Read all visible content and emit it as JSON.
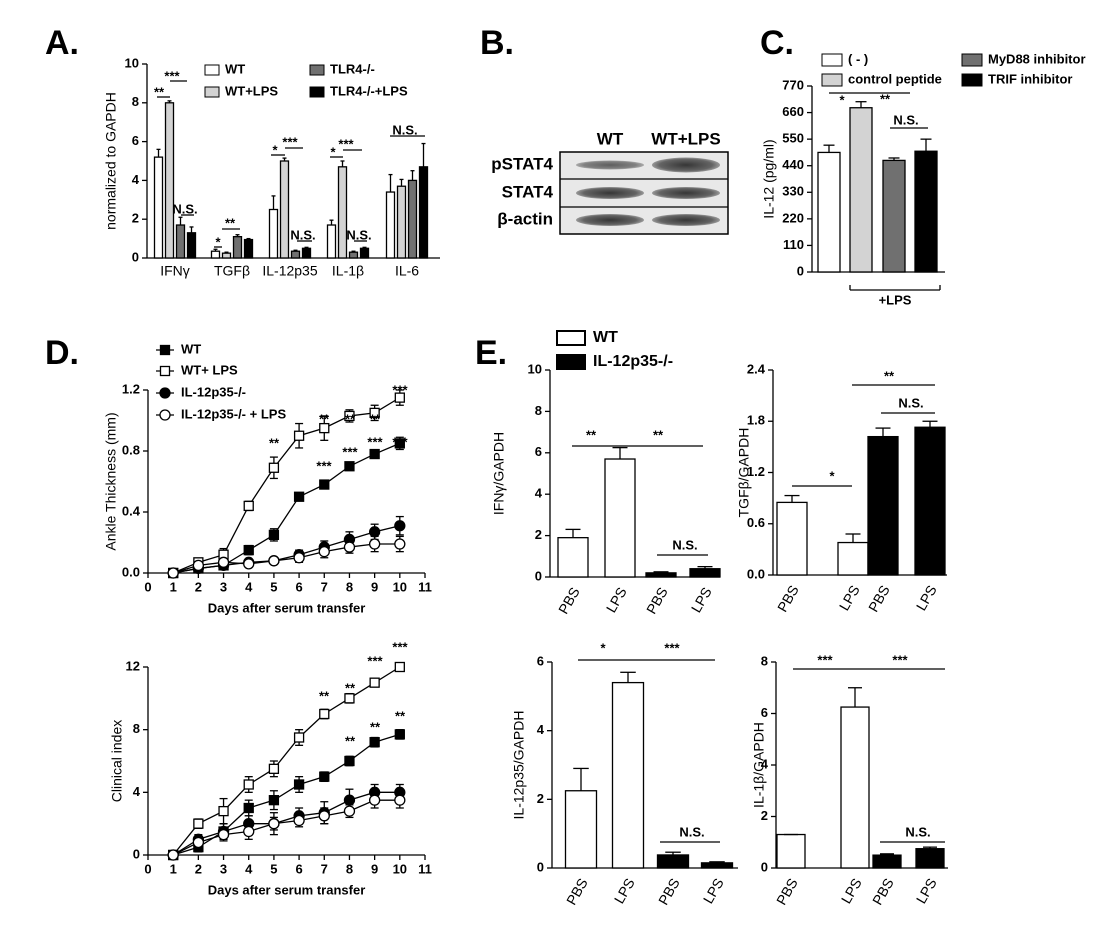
{
  "chart_data": [
    {
      "type": "bar",
      "panel": "A.",
      "ylabel": "normalized to GAPDH",
      "categories": [
        "IFNγ",
        "TGFβ",
        "IL-12p35",
        "IL-1β",
        "IL-6"
      ],
      "series": [
        {
          "name": "WT",
          "color": "#ffffff",
          "values": [
            5.2,
            0.35,
            2.5,
            1.7,
            3.4
          ],
          "errors": [
            0.4,
            0.1,
            0.7,
            0.25,
            0.9
          ]
        },
        {
          "name": "WT+LPS",
          "color": "#d3d3d3",
          "values": [
            8.0,
            0.25,
            5.0,
            4.7,
            3.7
          ],
          "errors": [
            0.1,
            0.05,
            0.15,
            0.3,
            0.35
          ]
        },
        {
          "name": "TLR4-/-",
          "color": "#707070",
          "values": [
            1.7,
            1.1,
            0.35,
            0.3,
            4.0
          ],
          "errors": [
            0.4,
            0.1,
            0.05,
            0.05,
            0.5
          ]
        },
        {
          "name": "TLR4-/-+LPS",
          "color": "#000000",
          "values": [
            1.3,
            0.95,
            0.5,
            0.5,
            4.7
          ],
          "errors": [
            0.3,
            0.05,
            0.05,
            0.05,
            1.2
          ]
        }
      ],
      "ylim": [
        0,
        10
      ],
      "yticks": [
        0,
        2,
        4,
        6,
        8,
        10
      ],
      "annotations": [
        "**",
        "***",
        "N.S.",
        "*",
        "**",
        "*",
        "***",
        "N.S.",
        "*",
        "***",
        "N.S.",
        "N.S."
      ]
    },
    {
      "type": "blot",
      "panel": "B.",
      "columns": [
        "WT",
        "WT+LPS"
      ],
      "rows": [
        "pSTAT4",
        "STAT4",
        "β-actin"
      ]
    },
    {
      "type": "bar",
      "panel": "C.",
      "ylabel": "IL-12 (pg/ml)",
      "group_label": "+LPS",
      "categories": [
        "( - )",
        "control peptide",
        "MyD88 inhibitor",
        "TRIF inhibitor"
      ],
      "colors": [
        "#ffffff",
        "#d3d3d3",
        "#707070",
        "#000000"
      ],
      "values": [
        495,
        680,
        462,
        500
      ],
      "errors": [
        30,
        25,
        10,
        50
      ],
      "ylim": [
        0,
        770
      ],
      "yticks": [
        0,
        110,
        220,
        330,
        440,
        550,
        660,
        770
      ],
      "annotations": [
        "*",
        "**",
        "N.S."
      ]
    },
    {
      "type": "line",
      "panel": "D.",
      "ylabel": "Ankle Thickness (mm)",
      "xlabel": "Days after serum transfer",
      "x": [
        1,
        2,
        3,
        4,
        5,
        6,
        7,
        8,
        9,
        10
      ],
      "series": [
        {
          "name": "WT",
          "marker": "filled-square",
          "values": [
            0,
            0.03,
            0.05,
            0.15,
            0.25,
            0.5,
            0.58,
            0.7,
            0.78,
            0.85
          ],
          "errors": [
            0,
            0.01,
            0.02,
            0.03,
            0.04,
            0.02,
            0.02,
            0.02,
            0.02,
            0.04
          ]
        },
        {
          "name": "WT+ LPS",
          "marker": "open-square",
          "values": [
            0,
            0.07,
            0.12,
            0.44,
            0.69,
            0.9,
            0.95,
            1.03,
            1.05,
            1.15
          ],
          "errors": [
            0,
            0.02,
            0.04,
            0.03,
            0.07,
            0.08,
            0.08,
            0.04,
            0.05,
            0.05
          ]
        },
        {
          "name": "IL-12p35-/-",
          "marker": "filled-circle",
          "values": [
            0,
            0.03,
            0.05,
            0.07,
            0.08,
            0.12,
            0.17,
            0.22,
            0.27,
            0.31
          ],
          "errors": [
            0,
            0.01,
            0.01,
            0.02,
            0.02,
            0.03,
            0.04,
            0.05,
            0.05,
            0.06
          ]
        },
        {
          "name": "IL-12p35-/- + LPS",
          "marker": "open-circle",
          "values": [
            0,
            0.05,
            0.07,
            0.06,
            0.08,
            0.1,
            0.14,
            0.17,
            0.19,
            0.19
          ],
          "errors": [
            0,
            0.02,
            0.02,
            0.02,
            0.02,
            0.03,
            0.04,
            0.04,
            0.05,
            0.05
          ]
        }
      ],
      "xlim": [
        0,
        11
      ],
      "xticks": [
        0,
        1,
        2,
        3,
        4,
        5,
        6,
        7,
        8,
        9,
        10,
        11
      ],
      "ylim": [
        0,
        1.2
      ],
      "yticks": [
        {
          "value": 0,
          "label": "0.0"
        },
        0.4,
        0.8,
        1.2
      ],
      "annotations": [
        "**",
        "**",
        "**",
        "**",
        "***",
        "***",
        "***",
        "***",
        "***"
      ]
    },
    {
      "type": "line",
      "ylabel": "Clinical index",
      "xlabel": "Days after serum transfer",
      "x": [
        1,
        2,
        3,
        4,
        5,
        6,
        7,
        8,
        9,
        10
      ],
      "series": [
        {
          "marker": "filled-square",
          "values": [
            0,
            0.5,
            1.5,
            3,
            3.5,
            4.5,
            5,
            6,
            7.2,
            7.7
          ],
          "errors": [
            0,
            0.3,
            0.5,
            0.5,
            0.6,
            0.5,
            0.3,
            0.3,
            0.3,
            0.3
          ]
        },
        {
          "marker": "open-square",
          "values": [
            0,
            2,
            2.8,
            4.5,
            5.5,
            7.5,
            9,
            10,
            11,
            12
          ],
          "errors": [
            0,
            0.3,
            0.8,
            0.5,
            0.5,
            0.5,
            0.3,
            0.3,
            0.2,
            0.2
          ]
        },
        {
          "marker": "filled-circle",
          "values": [
            0,
            1,
            1.5,
            2,
            2,
            2.5,
            2.7,
            3.5,
            4,
            4
          ],
          "errors": [
            0,
            0.3,
            0.5,
            0.5,
            0.7,
            0.5,
            0.7,
            0.7,
            0.5,
            0.5
          ]
        },
        {
          "marker": "open-circle",
          "values": [
            0,
            0.8,
            1.3,
            1.5,
            2,
            2.2,
            2.5,
            2.8,
            3.5,
            3.5
          ],
          "errors": [
            0,
            0.3,
            0.4,
            0.5,
            0.4,
            0.4,
            0.5,
            0.4,
            0.5,
            0.5
          ]
        }
      ],
      "xlim": [
        0,
        11
      ],
      "xticks": [
        0,
        1,
        2,
        3,
        4,
        5,
        6,
        7,
        8,
        9,
        10,
        11
      ],
      "ylim": [
        0,
        12
      ],
      "yticks": [
        0,
        4,
        8,
        12
      ],
      "annotations": [
        "**",
        "**",
        "***",
        "***",
        "**",
        "**",
        "**"
      ]
    },
    {
      "type": "bar",
      "panel": "E.",
      "ylabel": "IFNγ/GAPDH",
      "legend": [
        {
          "name": "WT",
          "color": "#ffffff"
        },
        {
          "name": "IL-12p35-/-",
          "color": "#000000"
        }
      ],
      "categories": [
        "PBS",
        "LPS",
        "PBS",
        "LPS"
      ],
      "colors": [
        "#ffffff",
        "#ffffff",
        "#000000",
        "#000000"
      ],
      "values": [
        1.9,
        5.7,
        0.2,
        0.4
      ],
      "errors": [
        0.4,
        0.55,
        0.05,
        0.1
      ],
      "ylim": [
        0,
        10
      ],
      "yticks": [
        0,
        2,
        4,
        6,
        8,
        10
      ],
      "annotations": [
        "**",
        "**",
        "N.S."
      ]
    },
    {
      "type": "bar",
      "ylabel": "TGFβ/GAPDH",
      "categories": [
        "PBS",
        "LPS",
        "PBS",
        "LPS"
      ],
      "colors": [
        "#ffffff",
        "#ffffff",
        "#000000",
        "#000000"
      ],
      "values": [
        0.85,
        0.38,
        1.62,
        1.73
      ],
      "errors": [
        0.08,
        0.1,
        0.1,
        0.07
      ],
      "ylim": [
        0,
        2.4
      ],
      "yticks": [
        {
          "value": 0,
          "label": "0.0"
        },
        0.6,
        1.2,
        1.8,
        2.4
      ],
      "annotations": [
        "*",
        "**",
        "N.S."
      ]
    },
    {
      "type": "bar",
      "ylabel": "IL-12p35/GAPDH",
      "categories": [
        "PBS",
        "LPS",
        "PBS",
        "LPS"
      ],
      "colors": [
        "#ffffff",
        "#ffffff",
        "#000000",
        "#000000"
      ],
      "values": [
        2.25,
        5.4,
        0.38,
        0.15
      ],
      "errors": [
        0.65,
        0.3,
        0.08,
        0.03
      ],
      "ylim": [
        0,
        6
      ],
      "yticks": [
        0,
        2,
        4,
        6
      ],
      "annotations": [
        "*",
        "***",
        "N.S."
      ]
    },
    {
      "type": "bar",
      "ylabel": "IL-1β/GAPDH",
      "categories": [
        "PBS",
        "LPS",
        "PBS",
        "LPS"
      ],
      "colors": [
        "#ffffff",
        "#ffffff",
        "#000000",
        "#000000"
      ],
      "values": [
        1.3,
        6.25,
        0.5,
        0.75
      ],
      "errors": [
        0,
        0.75,
        0.05,
        0.06
      ],
      "ylim": [
        0,
        8
      ],
      "yticks": [
        0,
        2,
        4,
        6,
        8
      ],
      "annotations": [
        "***",
        "***",
        "N.S."
      ]
    }
  ]
}
